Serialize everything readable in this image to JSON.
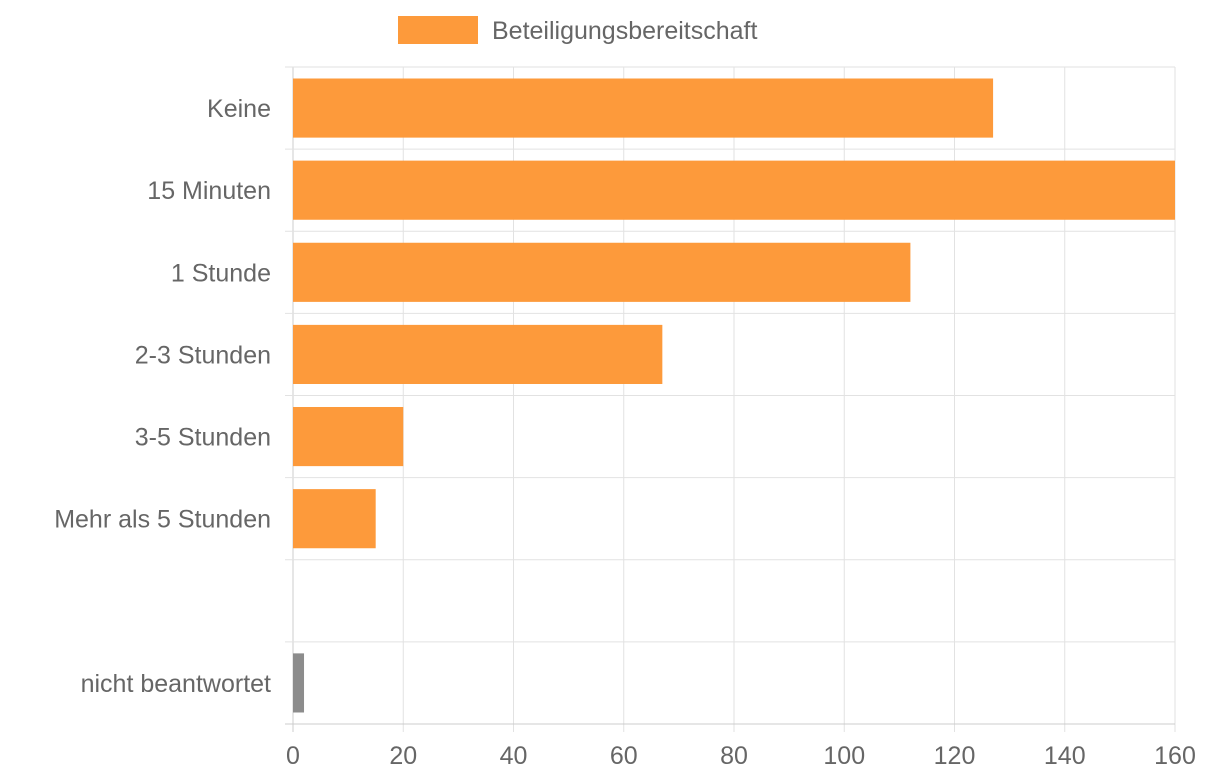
{
  "chart_data": {
    "type": "bar",
    "orientation": "horizontal",
    "title": "",
    "xlabel": "",
    "ylabel": "",
    "xlim": [
      0,
      160
    ],
    "x_ticks": [
      0,
      20,
      40,
      60,
      80,
      100,
      120,
      140,
      160
    ],
    "grid": true,
    "legend": {
      "placement": "top-center",
      "entries": [
        {
          "label": "Beteiligungsbereitschaft",
          "color": "#fd9a3b"
        }
      ]
    },
    "categories": [
      "Keine",
      "15 Minuten",
      "1 Stunde",
      "2-3 Stunden",
      "3-5 Stunden",
      "Mehr als 5 Stunden",
      "",
      "nicht beantwortet"
    ],
    "series": [
      {
        "name": "Beteiligungsbereitschaft",
        "color": "#fd9a3b",
        "values": [
          127,
          160,
          112,
          67,
          20,
          15,
          null,
          null
        ]
      },
      {
        "color": "#8c8c8c",
        "values": [
          null,
          null,
          null,
          null,
          null,
          null,
          null,
          2
        ]
      }
    ]
  }
}
